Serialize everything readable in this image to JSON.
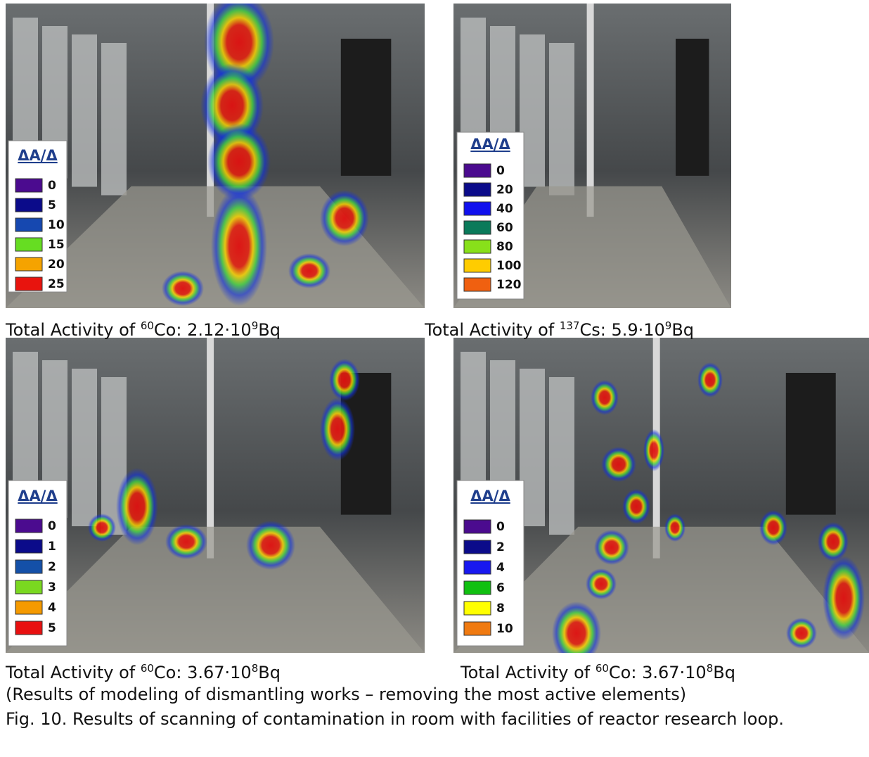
{
  "panels": [
    {
      "legend": {
        "title": "ΔA/Δ",
        "items": [
          {
            "label": "0",
            "color": "#4b0b8f"
          },
          {
            "label": "5",
            "color": "#0b0b8a"
          },
          {
            "label": "10",
            "color": "#1648b0"
          },
          {
            "label": "15",
            "color": "#66dd22"
          },
          {
            "label": "20",
            "color": "#f5a300"
          },
          {
            "label": "25",
            "color": "#e8140e"
          }
        ]
      },
      "caption": {
        "prefix": "Total Activity of ",
        "mass": "60",
        "body": "Co: 2.12·10",
        "exponent": "9",
        "unit": "Bq"
      }
    },
    {
      "legend": {
        "title": "ΔA/Δ",
        "items": [
          {
            "label": "0",
            "color": "#4b0b8f"
          },
          {
            "label": "20",
            "color": "#0b0b8a"
          },
          {
            "label": "40",
            "color": "#1010ee"
          },
          {
            "label": "60",
            "color": "#0a7a5a"
          },
          {
            "label": "80",
            "color": "#88e01a"
          },
          {
            "label": "100",
            "color": "#ffcc00"
          },
          {
            "label": "120",
            "color": "#f06010"
          }
        ]
      },
      "caption": {
        "prefix": "Total Activity of ",
        "mass": "137",
        "body": "Cs: 5.9·10",
        "exponent": "9",
        "unit": "Bq"
      }
    },
    {
      "legend": {
        "title": "ΔA/Δ",
        "items": [
          {
            "label": "0",
            "color": "#4b0b8f"
          },
          {
            "label": "1",
            "color": "#0b0b8a"
          },
          {
            "label": "2",
            "color": "#1450a8"
          },
          {
            "label": "3",
            "color": "#7ad820"
          },
          {
            "label": "4",
            "color": "#f59a00"
          },
          {
            "label": "5",
            "color": "#e81010"
          }
        ]
      },
      "caption": {
        "prefix": "Total Activity of ",
        "mass": "60",
        "body": "Co: 3.67·10",
        "exponent": "8",
        "unit": "Bq"
      }
    },
    {
      "legend": {
        "title": "ΔA/Δ",
        "items": [
          {
            "label": "0",
            "color": "#4b0b8f"
          },
          {
            "label": "2",
            "color": "#0b0b8a"
          },
          {
            "label": "4",
            "color": "#1818f0"
          },
          {
            "label": "6",
            "color": "#10c010"
          },
          {
            "label": "8",
            "color": "#ffff00"
          },
          {
            "label": "10",
            "color": "#f07a10"
          }
        ]
      },
      "caption": {
        "prefix": "Total Activity of ",
        "mass": "60",
        "body": "Co: 3.67·10",
        "exponent": "8",
        "unit": "Bq"
      }
    }
  ],
  "note": "(Results of modeling of dismantling works – removing the most active elements)",
  "figure_caption": "Fig. 10. Results of scanning of contamination in room with facilities of reactor research loop."
}
